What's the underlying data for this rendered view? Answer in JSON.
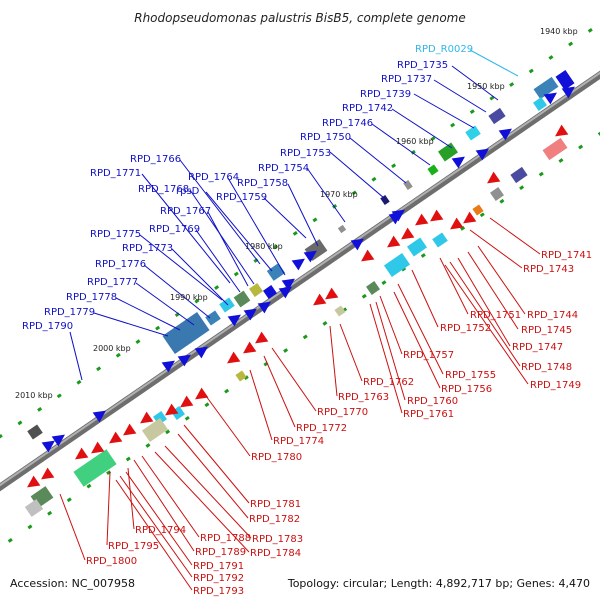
{
  "title": "Rhodopseudomonas palustris BisB5, complete genome",
  "footer": {
    "accession": "Accession: NC_007958",
    "topology": "Topology: circular; Length: 4,892,717 bp; Genes: 4,470"
  },
  "colors": {
    "backbone": "#8a8a8a",
    "forward_label": "#1010c8",
    "reverse_label": "#cc1010",
    "rna_label": "#30b8e8",
    "tick": "#1a9a1a"
  },
  "ticks": [
    "1940 kbp",
    "1950 kbp",
    "1960 kbp",
    "1970 kbp",
    "1980 kbp",
    "1990 kbp",
    "2000 kbp",
    "2010 kbp"
  ],
  "forward_labels": [
    "RPD_R0029",
    "RPD_1735",
    "RPD_1737",
    "RPD_1739",
    "RPD_1742",
    "RPD_1746",
    "RPD_1750",
    "RPD_1753",
    "RPD_1754",
    "RPD_1766",
    "RPD_1764",
    "RPD_1771",
    "rpsD",
    "RPD_1758",
    "RPD_1768",
    "RPD_1759",
    "RPD_1767",
    "RPD_1769",
    "RPD_1775",
    "RPD_1773",
    "RPD_1776",
    "RPD_1777",
    "RPD_1778",
    "RPD_1779",
    "RPD_1790"
  ],
  "reverse_labels": [
    "RPD_1741",
    "RPD_1743",
    "RPD_1744",
    "RPD_1745",
    "RPD_1747",
    "RPD_1751",
    "RPD_1752",
    "RPD_1748",
    "RPD_1749",
    "RPD_1757",
    "RPD_1755",
    "RPD_1756",
    "RPD_1762",
    "RPD_1763",
    "RPD_1760",
    "RPD_1761",
    "RPD_1770",
    "RPD_1772",
    "RPD_1774",
    "RPD_1780",
    "RPD_1781",
    "RPD_1782",
    "RPD_1783",
    "RPD_1784",
    "RPD_1788",
    "RPD_1789",
    "RPD_1794",
    "RPD_1795",
    "RPD_1791",
    "RPD_1792",
    "RPD_1793",
    "RPD_1800"
  ]
}
